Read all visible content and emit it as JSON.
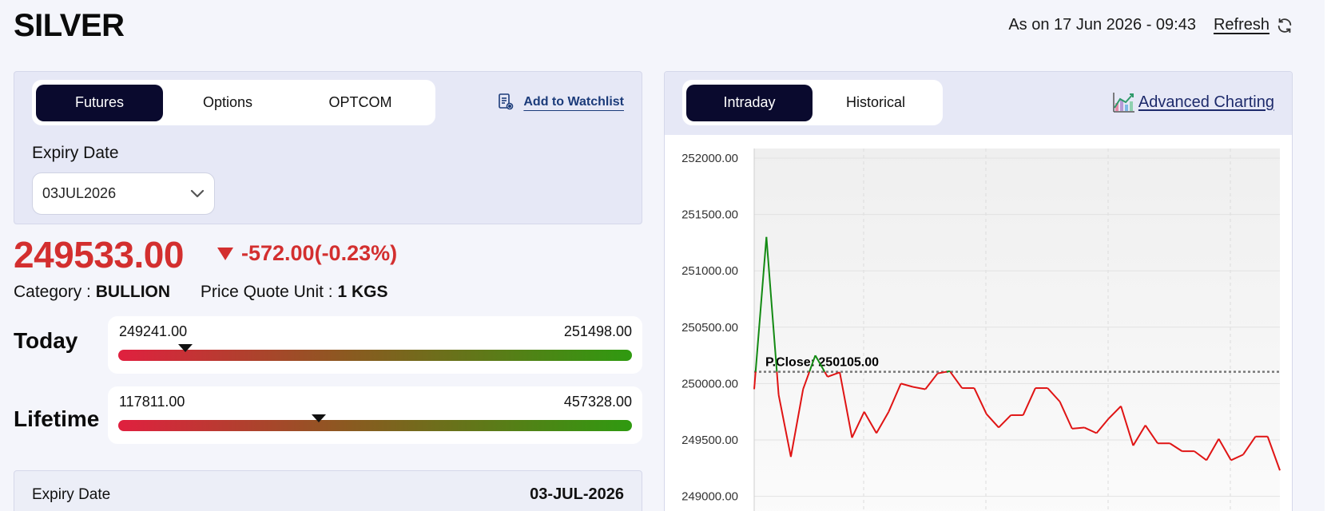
{
  "title": "SILVER",
  "as_on": "As on 17 Jun 2026 - 09:43",
  "refresh_label": "Refresh",
  "left": {
    "tabs": [
      {
        "label": "Futures",
        "active": true
      },
      {
        "label": "Options",
        "active": false
      },
      {
        "label": "OPTCOM",
        "active": false
      }
    ],
    "watchlist_label": "Add to Watchlist",
    "expiry_label": "Expiry Date",
    "expiry_value": "03JUL2026"
  },
  "price": "249533.00",
  "change": "-572.00(-0.23%)",
  "category_label": "Category :",
  "category_value": "BULLION",
  "unit_label": "Price Quote Unit :",
  "unit_value": "1 KGS",
  "today": {
    "label": "Today",
    "low": "249241.00",
    "high": "251498.00",
    "position": 0.13
  },
  "lifetime": {
    "label": "Lifetime",
    "low": "117811.00",
    "high": "457328.00",
    "position": 0.39
  },
  "details": {
    "expiry_label": "Expiry Date",
    "expiry_value": "03-JUL-2026"
  },
  "right": {
    "tabs": [
      {
        "label": "Intraday",
        "active": true
      },
      {
        "label": "Historical",
        "active": false
      }
    ],
    "advanced_label": "Advanced Charting"
  },
  "colors": {
    "accent_dark": "#0a0a2e",
    "down": "#d32f2f",
    "up": "#138a13"
  },
  "chart_data": {
    "type": "line",
    "ylim": [
      248800,
      252100
    ],
    "ticks": [
      "252000.00",
      "251500.00",
      "251000.00",
      "250500.00",
      "250000.00",
      "249500.00",
      "249000.00"
    ],
    "tick_values": [
      252000,
      251500,
      251000,
      250500,
      250000,
      249500,
      249000
    ],
    "prev_close": 250105,
    "prev_close_label": "P.Close: 250105.00",
    "values": [
      249950,
      251300,
      249900,
      249350,
      249950,
      250250,
      250060,
      250100,
      249520,
      249750,
      249560,
      249750,
      250000,
      249970,
      249950,
      250090,
      250110,
      249960,
      249960,
      249730,
      249610,
      249720,
      249720,
      249960,
      249960,
      249840,
      249600,
      249610,
      249560,
      249690,
      249800,
      249450,
      249630,
      249470,
      249470,
      249400,
      249400,
      249320,
      249510,
      249320,
      249370,
      249530,
      249530,
      249230
    ]
  }
}
